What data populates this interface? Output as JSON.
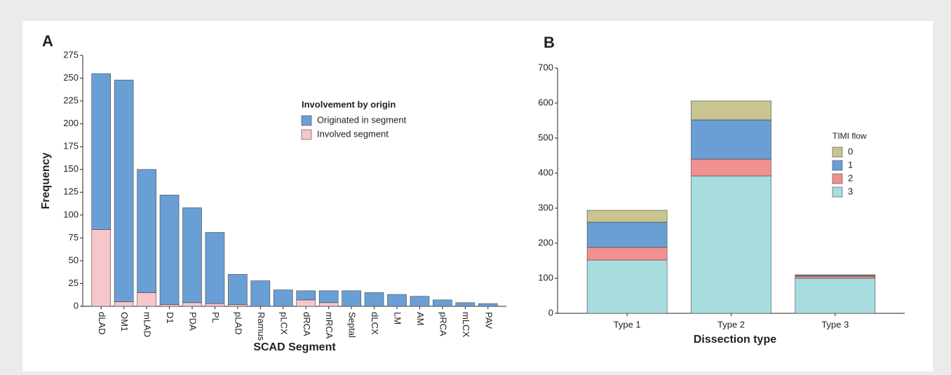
{
  "chart_data": [
    {
      "type": "bar",
      "stacked": true,
      "title": "A",
      "xlabel": "SCAD Segment",
      "ylabel": "Frequency",
      "legend_title": "Involvement by origin",
      "categories": [
        "dLAD",
        "OM1",
        "mLAD",
        "D1",
        "PDA",
        "PL",
        "pLAD",
        "Ramus",
        "pLCX",
        "dRCA",
        "mRCA",
        "Septal",
        "dLCX",
        "LM",
        "AM",
        "pRCA",
        "mLCX",
        "PAV"
      ],
      "series": [
        {
          "name": "Originated in segment",
          "color": "#6a9fd5",
          "values": [
            171,
            243,
            135,
            120,
            104,
            78,
            33,
            28,
            18,
            10,
            13,
            17,
            15,
            13,
            11,
            7,
            4,
            3
          ]
        },
        {
          "name": "Involved segment",
          "color": "#f7c6ca",
          "values": [
            84,
            5,
            15,
            2,
            4,
            3,
            2,
            0,
            0,
            7,
            4,
            0,
            0,
            0,
            0,
            0,
            0,
            0
          ]
        }
      ],
      "ylim": [
        0,
        275
      ],
      "yticks": [
        0,
        25,
        50,
        75,
        100,
        125,
        150,
        175,
        200,
        225,
        250,
        275
      ]
    },
    {
      "type": "bar",
      "stacked": true,
      "title": "B",
      "xlabel": "Dissection type",
      "legend_title": "TIMI flow",
      "categories": [
        "Type 1",
        "Type 2",
        "Type 3"
      ],
      "series": [
        {
          "name": "0",
          "color": "#c9c591",
          "values": [
            34,
            54,
            2
          ]
        },
        {
          "name": "1",
          "color": "#6a9fd5",
          "values": [
            72,
            112,
            2
          ]
        },
        {
          "name": "2",
          "color": "#f09090",
          "values": [
            36,
            48,
            6
          ]
        },
        {
          "name": "3",
          "color": "#a8dde0",
          "values": [
            152,
            392,
            100
          ]
        }
      ],
      "ylim": [
        0,
        700
      ],
      "yticks": [
        0,
        100,
        200,
        300,
        400,
        500,
        600,
        700
      ]
    }
  ]
}
